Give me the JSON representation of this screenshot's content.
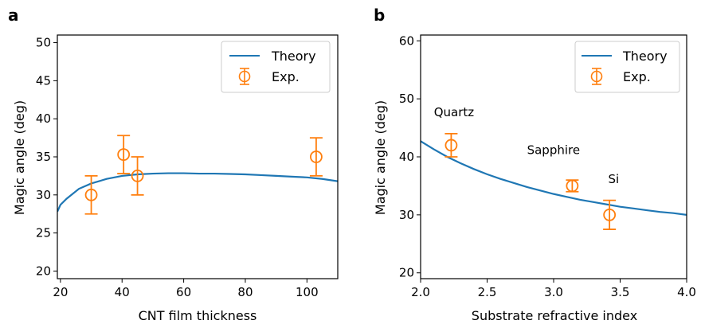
{
  "chart_data": [
    {
      "panel_label": "a",
      "type": "line",
      "xlabel": "CNT film thickness",
      "ylabel": "Magic angle (deg)",
      "xlim": [
        19,
        110
      ],
      "ylim": [
        19,
        51
      ],
      "xticks": [
        20,
        40,
        60,
        80,
        100
      ],
      "yticks": [
        20,
        25,
        30,
        35,
        40,
        45,
        50
      ],
      "grid": false,
      "legend_position": "top-right",
      "series": [
        {
          "name": "Theory",
          "kind": "line",
          "color": "#1f77b4",
          "x": [
            19,
            20,
            22,
            26,
            30,
            35,
            40,
            45,
            50,
            55,
            60,
            65,
            70,
            75,
            80,
            85,
            90,
            95,
            100,
            105,
            110
          ],
          "y": [
            27.8,
            28.7,
            29.5,
            30.8,
            31.5,
            32.1,
            32.5,
            32.7,
            32.8,
            32.85,
            32.85,
            32.8,
            32.8,
            32.75,
            32.7,
            32.6,
            32.5,
            32.4,
            32.3,
            32.1,
            31.8
          ]
        },
        {
          "name": "Exp.",
          "kind": "errorbar",
          "color": "#ff7f0e",
          "x": [
            30,
            40.5,
            45,
            103
          ],
          "y": [
            30,
            35.3,
            32.5,
            35
          ],
          "yerr": [
            2.5,
            2.5,
            2.5,
            2.5
          ]
        }
      ]
    },
    {
      "panel_label": "b",
      "type": "line",
      "xlabel": "Substrate refractive index",
      "ylabel": "Magic angle (deg)",
      "xlim": [
        2.0,
        4.0
      ],
      "ylim": [
        19,
        61
      ],
      "xticks": [
        2.0,
        2.5,
        3.0,
        3.5,
        4.0
      ],
      "yticks": [
        20,
        30,
        40,
        50,
        60
      ],
      "grid": false,
      "legend_position": "top-right",
      "series": [
        {
          "name": "Theory",
          "kind": "line",
          "color": "#1f77b4",
          "x": [
            2.0,
            2.1,
            2.2,
            2.3,
            2.4,
            2.5,
            2.6,
            2.7,
            2.8,
            2.9,
            3.0,
            3.1,
            3.2,
            3.3,
            3.4,
            3.5,
            3.6,
            3.7,
            3.8,
            3.9,
            4.0
          ],
          "y": [
            42.7,
            41.3,
            40.0,
            38.9,
            37.9,
            37.0,
            36.2,
            35.5,
            34.8,
            34.2,
            33.6,
            33.1,
            32.6,
            32.2,
            31.8,
            31.4,
            31.1,
            30.8,
            30.5,
            30.3,
            30.0
          ]
        },
        {
          "name": "Exp.",
          "kind": "errorbar",
          "color": "#ff7f0e",
          "x": [
            2.23,
            3.14,
            3.42
          ],
          "y": [
            42,
            35,
            30
          ],
          "yerr": [
            2.0,
            1.0,
            2.5
          ]
        }
      ],
      "annotations": [
        {
          "text": "Quartz",
          "x": 2.1,
          "y": 47
        },
        {
          "text": "Sapphire",
          "x": 2.8,
          "y": 40.5
        },
        {
          "text": "Si",
          "x": 3.41,
          "y": 35.5
        }
      ]
    }
  ]
}
